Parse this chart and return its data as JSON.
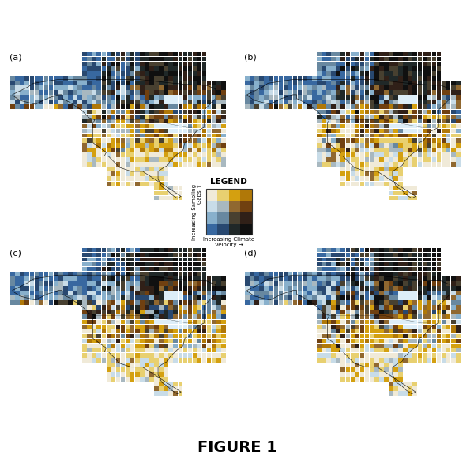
{
  "title": "FIGURE 1",
  "title_fontsize": 14,
  "title_fontweight": "bold",
  "panel_labels": [
    "(a)",
    "(b)",
    "(c)",
    "(d)"
  ],
  "panel_label_fontsize": 8,
  "background_color": "#ffffff",
  "legend_title": "LEGEND",
  "legend_title_fontsize": 7,
  "legend_x_label": "Increasing Climate\nVelocity →",
  "legend_y_label": "Increasing Sampling\nGaps ↑",
  "bivariate_colors": [
    [
      "#f0ead8",
      "#e8d070",
      "#d4a010",
      "#b07808"
    ],
    [
      "#c8dce8",
      "#a8b8c0",
      "#906830",
      "#704010"
    ],
    [
      "#88b0cc",
      "#6888a0",
      "#484030",
      "#302018"
    ],
    [
      "#3868a0",
      "#284870",
      "#202828",
      "#101010"
    ]
  ],
  "seeds": [
    42,
    123,
    77,
    200
  ]
}
